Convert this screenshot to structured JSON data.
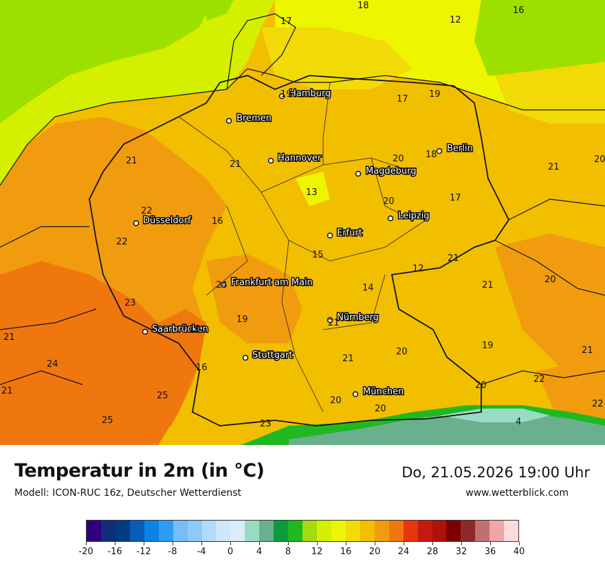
{
  "header": {
    "title": "Temperatur in 2m (in °C)",
    "model": "Modell: ICON-RUC 16z, Deutscher Wetterdienst",
    "datetime": "Do, 21.05.2026 19:00 Uhr",
    "website": "www.wetterblick.com"
  },
  "cities": [
    {
      "name": "Hamburg"
    },
    {
      "name": "Bremen"
    },
    {
      "name": "Berlin"
    },
    {
      "name": "Hannover"
    },
    {
      "name": "Magdeburg"
    },
    {
      "name": "Düsseldorf"
    },
    {
      "name": "Leipzig"
    },
    {
      "name": "Erfurt"
    },
    {
      "name": "Frankfurt am Main"
    },
    {
      "name": "Nürnberg"
    },
    {
      "name": "Saarbrücken"
    },
    {
      "name": "Stuttgart"
    },
    {
      "name": "München"
    }
  ],
  "temperature_values": [
    "18",
    "16",
    "17",
    "12",
    "19",
    "17",
    "19",
    "18",
    "20",
    "21",
    "21",
    "20",
    "21",
    "22",
    "16",
    "13",
    "20",
    "17",
    "22",
    "15",
    "12",
    "21",
    "21",
    "20",
    "24",
    "14",
    "23",
    "19",
    "19",
    "21",
    "21",
    "21",
    "20",
    "19",
    "24",
    "16",
    "21",
    "21",
    "20",
    "22",
    "22",
    "25",
    "20",
    "20",
    "25",
    "23",
    "4"
  ],
  "colorbar": {
    "colors": [
      "#2e007e",
      "#0f2e7a",
      "#003c80",
      "#0a5cb8",
      "#0a82e6",
      "#2c9cf5",
      "#78bcf8",
      "#8ec9f9",
      "#b3dafb",
      "#cfe6fc",
      "#dcecfb",
      "#99dcc4",
      "#6ab08e",
      "#0c9a3a",
      "#20b820",
      "#a3db0f",
      "#d4ef00",
      "#eef500",
      "#f2da06",
      "#f2be00",
      "#f09c0e",
      "#f0770e",
      "#e8350e",
      "#c5190f",
      "#ad120c",
      "#7d0000",
      "#8c2a2a",
      "#c07070",
      "#f0a6a6",
      "#ffdada"
    ],
    "tick_labels": [
      "-20",
      "-16",
      "-12",
      "-8",
      "-4",
      "0",
      "4",
      "8",
      "12",
      "16",
      "20",
      "24",
      "28",
      "32",
      "36",
      "40"
    ]
  },
  "colors": {
    "sea_green": "#9de000",
    "sea_yellow": "#d8ef00",
    "land_orange_light": "#f2be00",
    "land_orange": "#f09c0e",
    "land_red": "#f0770e",
    "alpine_green": "#20b820"
  }
}
